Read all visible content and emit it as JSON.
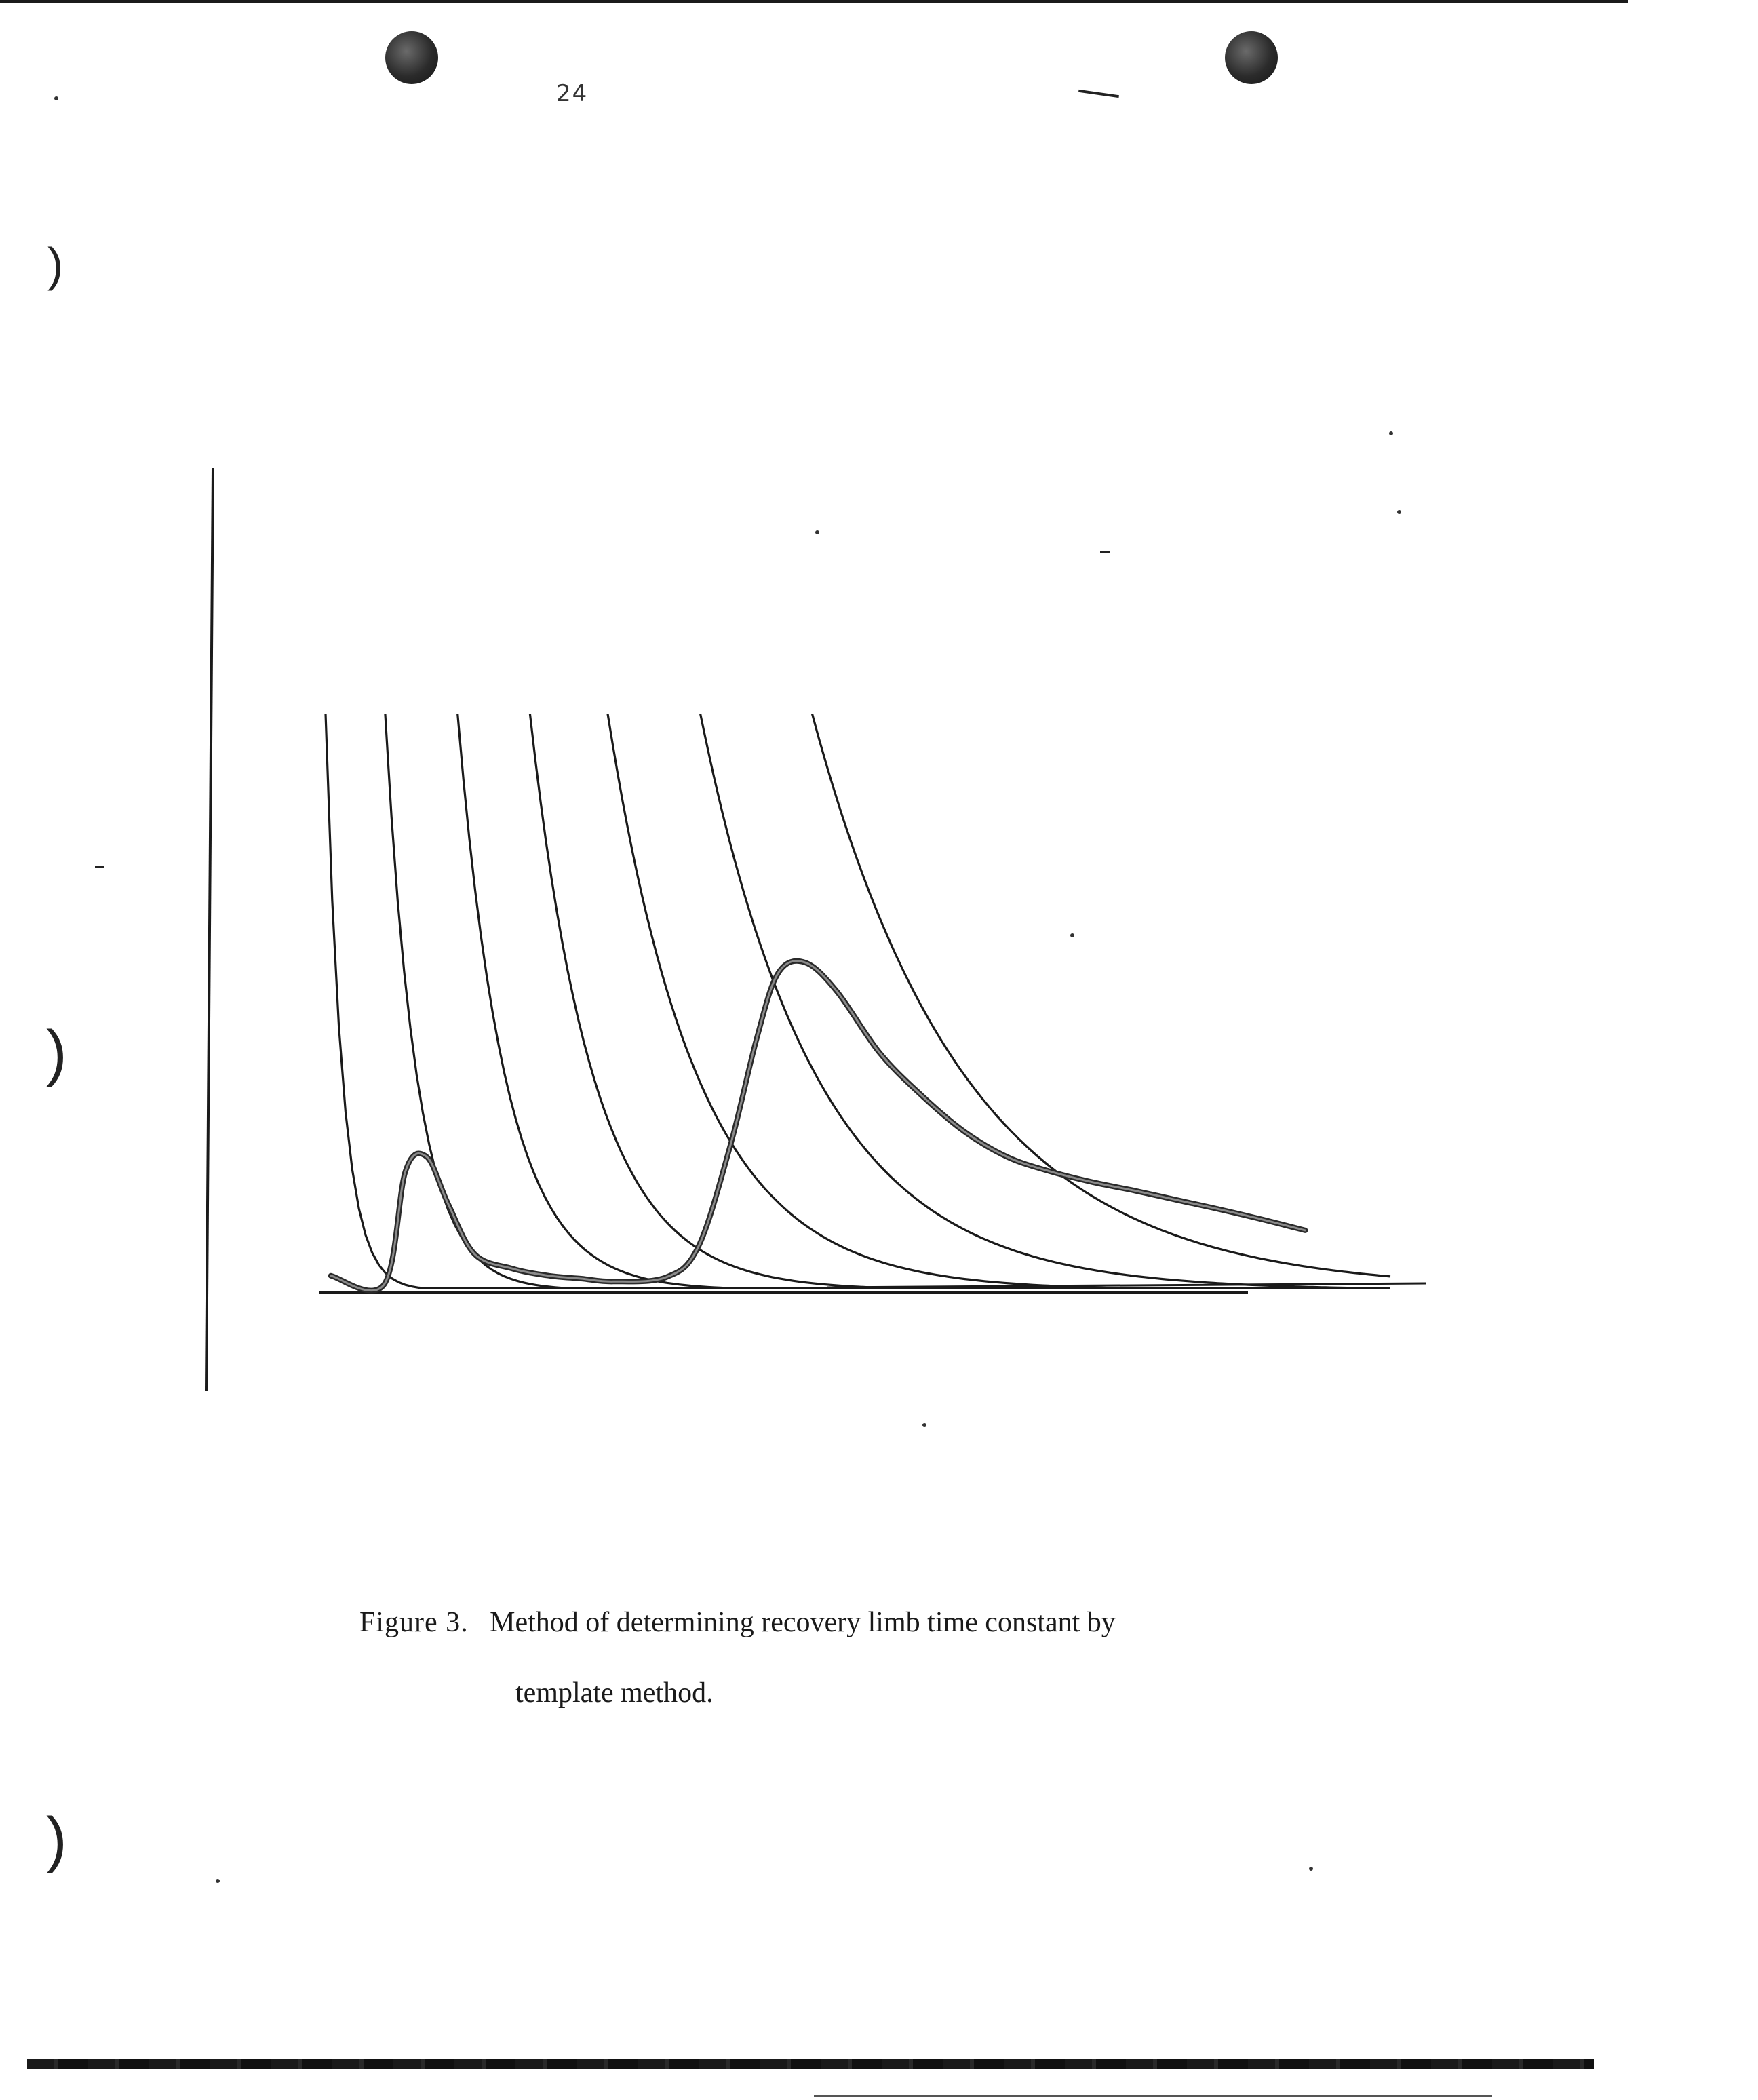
{
  "page": {
    "page_mark": "24"
  },
  "figure": {
    "caption_number": "Figure 3.",
    "caption_line1": "Method of determining recovery limb time constant by",
    "caption_line2": "template method."
  },
  "chart_data": {
    "type": "line",
    "title": "",
    "xlabel": "",
    "ylabel": "",
    "xlim": [
      0,
      100
    ],
    "ylim": [
      0,
      100
    ],
    "grid": false,
    "legend": "none",
    "template_curves": {
      "description_units": "arbitrary",
      "offsets": [
        0,
        5.6,
        12.4,
        19.2,
        26.5,
        35.2,
        45.7
      ],
      "tau": [
        1.6,
        3.0,
        4.5,
        6.0,
        8.5,
        11.0,
        14.5
      ],
      "start_height": 80
    },
    "hydrograph": {
      "x": [
        0.5,
        5.5,
        7.5,
        9.5,
        11.5,
        14.0,
        17.5,
        21.0,
        24.0,
        27.0,
        32.0,
        35.0,
        38.0,
        40.5,
        42.5,
        45.0,
        48.0,
        52.0,
        56.0,
        60.0,
        64.0,
        68.0,
        72.0,
        76.0,
        80.0,
        84.0,
        88.0,
        92.0
      ],
      "y": [
        2.0,
        0.8,
        16.5,
        18.5,
        12.0,
        5.0,
        3.0,
        2.0,
        1.6,
        1.2,
        1.8,
        6.0,
        20.0,
        35.0,
        44.0,
        45.5,
        41.5,
        33.0,
        27.0,
        22.0,
        18.5,
        16.5,
        15.0,
        13.8,
        12.5,
        11.2,
        9.8,
        8.3
      ]
    }
  },
  "colors": {
    "ink": "#1a1a1a",
    "paper": "#ffffff"
  }
}
